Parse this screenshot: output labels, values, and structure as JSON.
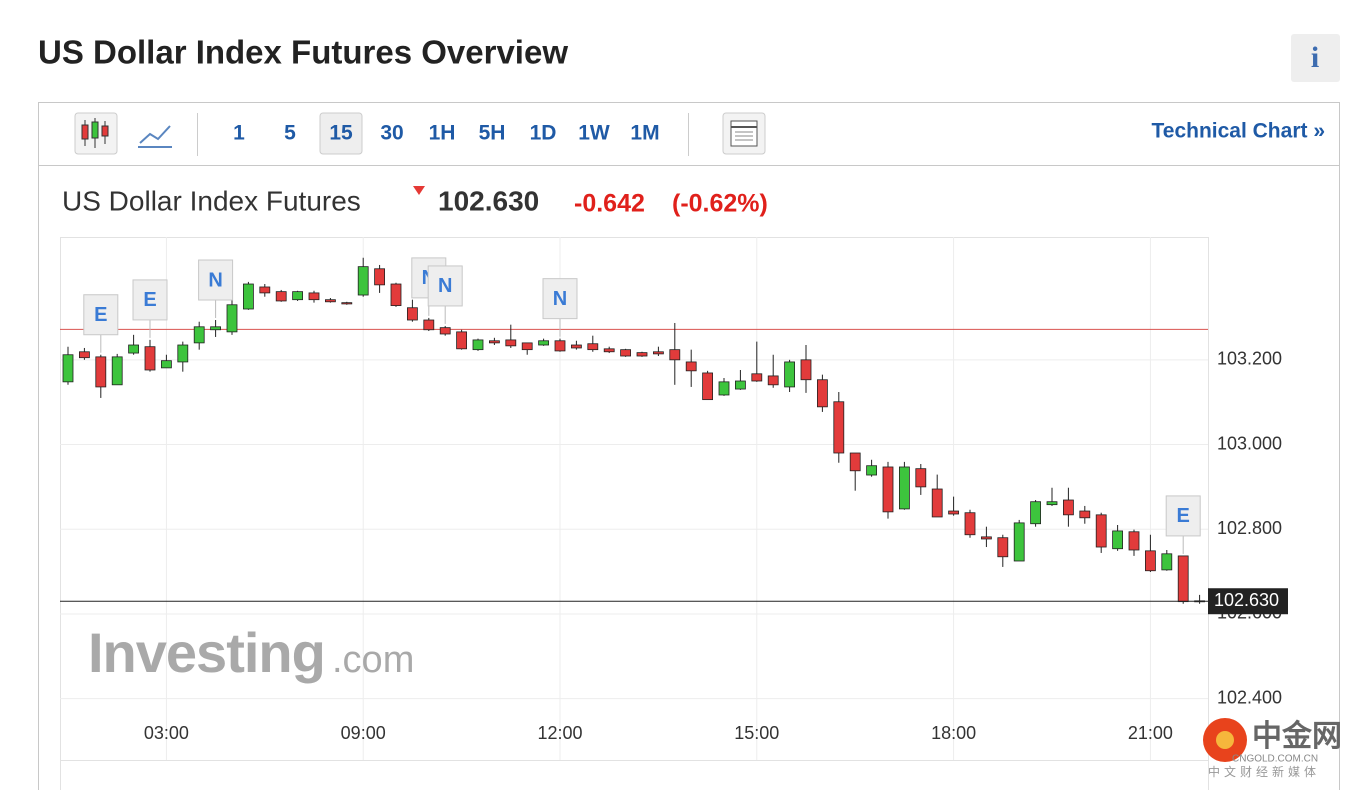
{
  "page_title": "US Dollar Index Futures Overview",
  "info_button": "i",
  "toolbar": {
    "intervals": [
      "1",
      "5",
      "15",
      "30",
      "1H",
      "5H",
      "1D",
      "1W",
      "1M"
    ],
    "selected": "15",
    "technical_chart": "Technical Chart »"
  },
  "quote": {
    "name": "US Dollar Index Futures",
    "last": "102.630",
    "change": "-0.642",
    "change_pct": "(-0.62%)"
  },
  "chart_data": {
    "type": "candlestick",
    "categories": [
      null,
      null,
      null,
      null,
      null,
      null,
      "03:00",
      null,
      null,
      null,
      null,
      null,
      null,
      null,
      null,
      null,
      null,
      null,
      "09:00",
      null,
      null,
      null,
      null,
      null,
      null,
      null,
      null,
      null,
      null,
      null,
      "12:00",
      null,
      null,
      null,
      null,
      null,
      null,
      null,
      null,
      null,
      null,
      null,
      "15:00",
      null,
      null,
      null,
      null,
      null,
      null,
      null,
      null,
      null,
      null,
      null,
      "18:00",
      null,
      null,
      null,
      null,
      null,
      null,
      null,
      null,
      null,
      null,
      null,
      "21:00",
      null,
      null,
      null
    ],
    "open": [
      103.148,
      103.219,
      103.207,
      103.141,
      103.216,
      103.231,
      103.181,
      103.195,
      103.24,
      103.271,
      103.266,
      103.32,
      103.372,
      103.361,
      103.342,
      103.358,
      103.342,
      103.335,
      103.353,
      103.415,
      103.379,
      103.323,
      103.294,
      103.276,
      103.266,
      103.224,
      103.245,
      103.247,
      103.24,
      103.235,
      103.245,
      103.235,
      103.238,
      103.226,
      103.224,
      103.217,
      103.219,
      103.224,
      103.195,
      103.169,
      103.117,
      103.131,
      103.167,
      103.162,
      103.136,
      103.2,
      103.153,
      103.101,
      102.98,
      102.928,
      102.947,
      102.848,
      102.943,
      102.895,
      102.843,
      102.839,
      102.782,
      102.78,
      102.725,
      102.813,
      102.858,
      102.869,
      102.843,
      102.834,
      102.754,
      102.794,
      102.749,
      102.704,
      102.737,
      102.631
    ],
    "high": [
      103.231,
      103.228,
      103.212,
      103.214,
      103.259,
      103.247,
      103.212,
      103.243,
      103.29,
      103.294,
      103.342,
      103.384,
      103.379,
      103.365,
      103.363,
      103.363,
      103.346,
      103.337,
      103.441,
      103.424,
      103.382,
      103.342,
      103.299,
      103.28,
      103.271,
      103.25,
      103.252,
      103.283,
      103.24,
      103.25,
      103.25,
      103.245,
      103.257,
      103.231,
      103.226,
      103.219,
      103.231,
      103.287,
      103.224,
      103.174,
      103.157,
      103.176,
      103.243,
      103.212,
      103.2,
      103.235,
      103.165,
      103.124,
      102.98,
      102.964,
      102.959,
      102.959,
      102.954,
      102.929,
      102.877,
      102.846,
      102.806,
      102.787,
      102.822,
      102.869,
      102.898,
      102.898,
      102.855,
      102.839,
      102.81,
      102.799,
      102.787,
      102.751,
      102.737,
      102.645
    ],
    "low": [
      103.141,
      103.2,
      103.11,
      103.141,
      103.212,
      103.172,
      103.181,
      103.172,
      103.224,
      103.254,
      103.259,
      103.318,
      103.349,
      103.337,
      103.339,
      103.335,
      103.335,
      103.33,
      103.349,
      103.358,
      103.325,
      103.29,
      103.268,
      103.257,
      103.224,
      103.221,
      103.235,
      103.228,
      103.212,
      103.233,
      103.219,
      103.224,
      103.219,
      103.216,
      103.207,
      103.207,
      103.209,
      103.141,
      103.136,
      103.106,
      103.115,
      103.129,
      103.148,
      103.134,
      103.124,
      103.122,
      103.077,
      102.957,
      102.891,
      102.924,
      102.825,
      102.846,
      102.881,
      102.829,
      102.832,
      102.78,
      102.758,
      102.711,
      102.725,
      102.806,
      102.855,
      102.806,
      102.813,
      102.744,
      102.749,
      102.737,
      102.699,
      102.702,
      102.624,
      102.624
    ],
    "close": [
      103.212,
      103.205,
      103.136,
      103.207,
      103.235,
      103.176,
      103.198,
      103.235,
      103.278,
      103.278,
      103.33,
      103.379,
      103.358,
      103.339,
      103.361,
      103.342,
      103.337,
      103.332,
      103.42,
      103.377,
      103.328,
      103.294,
      103.271,
      103.261,
      103.226,
      103.247,
      103.24,
      103.233,
      103.224,
      103.245,
      103.221,
      103.228,
      103.224,
      103.219,
      103.209,
      103.209,
      103.214,
      103.2,
      103.174,
      103.106,
      103.148,
      103.15,
      103.15,
      103.141,
      103.195,
      103.153,
      103.089,
      102.98,
      102.938,
      102.95,
      102.841,
      102.947,
      102.9,
      102.829,
      102.836,
      102.787,
      102.777,
      102.735,
      102.815,
      102.865,
      102.865,
      102.834,
      102.827,
      102.758,
      102.796,
      102.751,
      102.702,
      102.742,
      102.629,
      102.63
    ],
    "events": [
      null,
      null,
      "E",
      null,
      null,
      "E",
      null,
      null,
      null,
      "N",
      null,
      null,
      null,
      null,
      null,
      null,
      null,
      null,
      null,
      null,
      null,
      null,
      "N",
      "N",
      null,
      null,
      null,
      null,
      null,
      null,
      "N",
      null,
      null,
      null,
      null,
      null,
      null,
      null,
      null,
      null,
      null,
      null,
      null,
      null,
      null,
      null,
      null,
      null,
      null,
      null,
      null,
      null,
      null,
      null,
      null,
      null,
      null,
      null,
      null,
      null,
      null,
      null,
      null,
      null,
      null,
      null,
      null,
      null,
      "E",
      null
    ],
    "up_color": "#3dc43d",
    "down_color": "#e23b3b",
    "ylim": [
      102.385,
      103.49
    ],
    "yticks": [
      {
        "value": 102.4,
        "label": "102.400"
      },
      {
        "value": 102.6,
        "label": "102.600"
      },
      {
        "value": 102.8,
        "label": "102.800"
      },
      {
        "value": 103.0,
        "label": "103.000"
      },
      {
        "value": 103.2,
        "label": "103.200"
      }
    ],
    "previous_close": 103.272,
    "previous_close_color": "#d9534f",
    "last_price": {
      "value": 102.63,
      "label": "102.630"
    },
    "grid": true,
    "watermark": {
      "brand": "Investing",
      "suffix": ".com"
    }
  },
  "overlay_logo": {
    "name": "中金网",
    "domain": "CNGOLD.COM.CN",
    "slogan": "中文财经新媒体"
  }
}
